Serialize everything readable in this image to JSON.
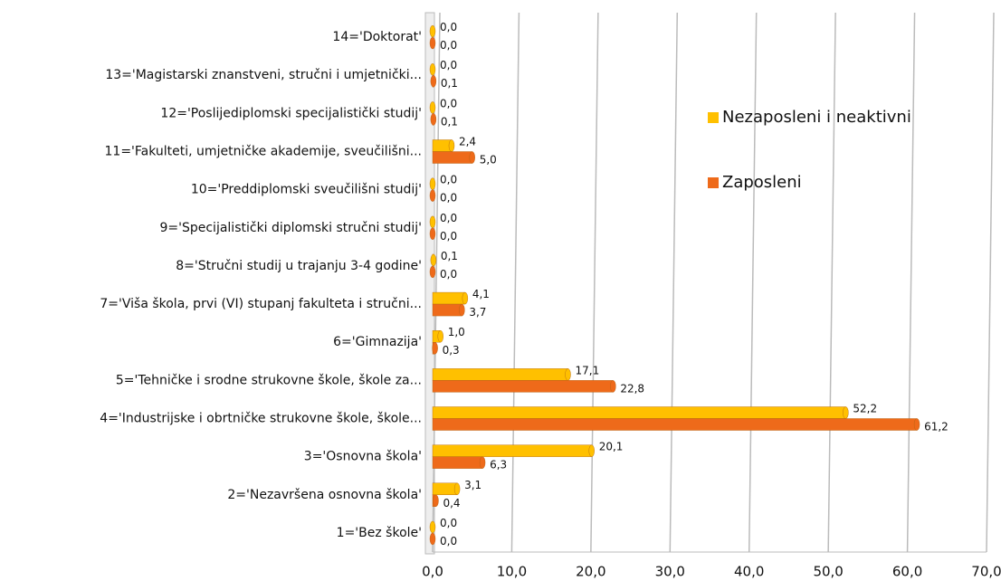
{
  "chart_data": {
    "type": "bar",
    "orientation": "horizontal",
    "categories": [
      "1='Bez škole'",
      "2='Nezavršena osnovna škola'",
      "3='Osnovna škola'",
      "4='Industrijske i obrtničke strukovne škole, škole...",
      "5='Tehničke i srodne strukovne škole, škole za...",
      "6='Gimnazija'",
      "7='Viša škola, prvi (VI) stupanj fakulteta i stručni...",
      "8='Stručni studij u trajanju 3-4 godine'",
      "9='Specijalistički diplomski stručni studij'",
      "10='Preddiplomski sveučilišni studij'",
      "11='Fakulteti, umjetničke akademije, sveučilišni...",
      "12='Poslijediplomski specijalistički studij'",
      "13='Magistarski znanstveni, stručni i umjetnički...",
      "14='Doktorat'"
    ],
    "series": [
      {
        "name": "Nezaposleni i neaktivni",
        "color": "#ffc000",
        "values": [
          0.0,
          3.1,
          20.1,
          52.2,
          17.1,
          1.0,
          4.1,
          0.1,
          0.0,
          0.0,
          2.4,
          0.0,
          0.0,
          0.0
        ],
        "value_labels": [
          "0,0",
          "3,1",
          "20,1",
          "52,2",
          "17,1",
          "1,0",
          "4,1",
          "0,1",
          "0,0",
          "0,0",
          "2,4",
          "0,0",
          "0,0",
          "0,0"
        ]
      },
      {
        "name": "Zaposleni",
        "color": "#ee6a1a",
        "values": [
          0.0,
          0.4,
          6.3,
          61.2,
          22.8,
          0.3,
          3.7,
          0.0,
          0.0,
          0.0,
          5.0,
          0.1,
          0.1,
          0.0
        ],
        "value_labels": [
          "0,0",
          "0,4",
          "6,3",
          "61,2",
          "22,8",
          "0,3",
          "3,7",
          "0,0",
          "0,0",
          "0,0",
          "5,0",
          "0,1",
          "0,1",
          "0,0"
        ]
      }
    ],
    "xlim": [
      0,
      70
    ],
    "xticks": [
      {
        "value": 0,
        "label": "0,0"
      },
      {
        "value": 10,
        "label": "10,0"
      },
      {
        "value": 20,
        "label": "20,0"
      },
      {
        "value": 30,
        "label": "30,0"
      },
      {
        "value": 40,
        "label": "40,0"
      },
      {
        "value": 50,
        "label": "50,0"
      },
      {
        "value": 60,
        "label": "60,0"
      },
      {
        "value": 70,
        "label": "70,0"
      }
    ],
    "grid": true,
    "legend": "right"
  }
}
